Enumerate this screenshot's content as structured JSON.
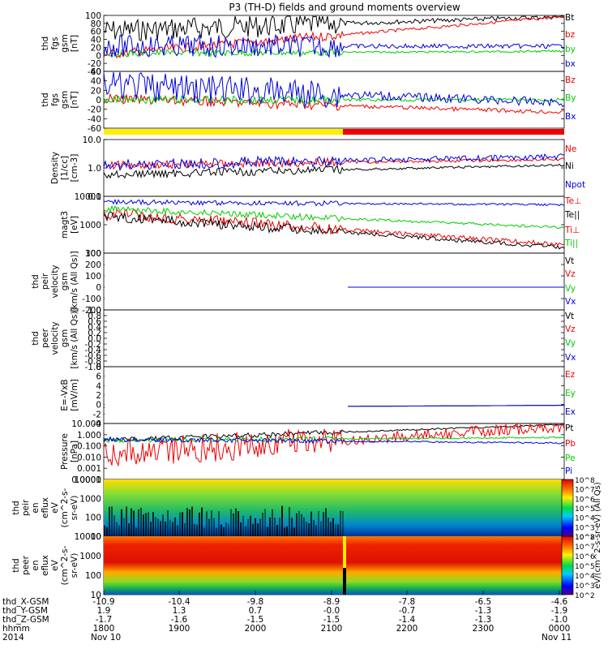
{
  "title": "P3 (TH-D) fields and ground moments overview",
  "time_ticks": [
    "1800",
    "1900",
    "2000",
    "2100",
    "2200",
    "2300",
    "0000"
  ],
  "dates": {
    "start": "Nov 10",
    "end": "Nov 11"
  },
  "ephemeris": {
    "labels": [
      "thd_X-GSM",
      "thd_Y-GSM",
      "thd_Z-GSM",
      "hhmm",
      "2014"
    ],
    "x_gsm": [
      "-10.9",
      "-10.4",
      "-9.8",
      "-8.9",
      "-7.8",
      "-6.5",
      "-4.6"
    ],
    "y_gsm": [
      "1.9",
      "1.3",
      "0.7",
      "-0.0",
      "-0.7",
      "-1.3",
      "-1.9"
    ],
    "z_gsm": [
      "-1.7",
      "-1.6",
      "-1.5",
      "-1.5",
      "-1.4",
      "-1.3",
      "-1.0"
    ]
  },
  "colorbar_label": "eV/(cm^2-s-sr-eV) (All Qs)",
  "colorbar_label_2": "eV/(cm^2-s-sr-eV)",
  "colorbar_ticks": [
    "10^8",
    "10^7",
    "10^6",
    "10^5",
    "10^4",
    "10^3",
    "10^2"
  ],
  "colors": {
    "black": "#000000",
    "red": "#ee0000",
    "green": "#00cc00",
    "blue": "#0000dd",
    "yellow": "#ffee00"
  },
  "chart_data": [
    {
      "type": "line",
      "ylabel": [
        "thd",
        "fgs",
        "gsm",
        "[nT]"
      ],
      "ylim": [
        -40,
        100
      ],
      "ticks": [
        "100",
        "80",
        "60",
        "40",
        "20",
        "0",
        "-20",
        "-40"
      ],
      "series": [
        {
          "name": "Bt",
          "color": "black"
        },
        {
          "name": "bz",
          "color": "red"
        },
        {
          "name": "by",
          "color": "green"
        },
        {
          "name": "bx",
          "color": "blue"
        }
      ]
    },
    {
      "type": "line",
      "ylabel": [
        "thd",
        "fgs",
        "gsm",
        "[nT]"
      ],
      "ylim": [
        -70,
        60
      ],
      "ticks": [
        "60",
        "40",
        "20",
        "0",
        "-20",
        "-40",
        "-60"
      ],
      "series": [
        {
          "name": "Bz",
          "color": "red"
        },
        {
          "name": "By",
          "color": "green"
        },
        {
          "name": "Bx",
          "color": "blue"
        }
      ]
    },
    {
      "type": "line",
      "ylabel": [
        "Density",
        "[1/cc]",
        "[cm-3]"
      ],
      "ylim": [
        0.1,
        10
      ],
      "log": true,
      "ticks": [
        "10.0",
        "1.0",
        "0.1"
      ],
      "series": [
        {
          "name": "Ne",
          "color": "red"
        },
        {
          "name": "Ni",
          "color": "black"
        },
        {
          "name": "Npot",
          "color": "blue"
        }
      ]
    },
    {
      "type": "line",
      "ylabel": [
        "magt3",
        "[eV]"
      ],
      "ylim": [
        100,
        10000
      ],
      "log": true,
      "ticks": [
        "10000",
        "1000",
        "100"
      ],
      "series": [
        {
          "name": "Te⊥",
          "color": "red"
        },
        {
          "name": "Te||",
          "color": "black"
        },
        {
          "name": "Ti⊥",
          "color": "red"
        },
        {
          "name": "Ti||",
          "color": "green"
        }
      ]
    },
    {
      "type": "line",
      "ylabel": [
        "thd",
        "peir",
        "velocity",
        "gsm",
        "[km/s (All Qs)]"
      ],
      "ylim": [
        -200,
        300
      ],
      "ticks": [
        "300",
        "200",
        "100",
        "0",
        "-100",
        "-200"
      ],
      "series": [
        {
          "name": "Vt",
          "color": "black"
        },
        {
          "name": "Vz",
          "color": "red"
        },
        {
          "name": "Vy",
          "color": "green"
        },
        {
          "name": "Vx",
          "color": "blue"
        }
      ]
    },
    {
      "type": "line",
      "ylabel": [
        "thd",
        "peer",
        "velocity",
        "gsm",
        "[km/s (All Qs)]"
      ],
      "ylim": [
        -1,
        1
      ],
      "ticks": [
        "1.0",
        "0.8",
        "0.6",
        "0.4",
        "0.2",
        "0.0",
        "-0.2",
        "-0.4",
        "-0.6",
        "-0.8",
        "-1.0"
      ],
      "series": [
        {
          "name": "Vt",
          "color": "black"
        },
        {
          "name": "Vz",
          "color": "red"
        },
        {
          "name": "Vy",
          "color": "green"
        },
        {
          "name": "Vx",
          "color": "blue"
        }
      ]
    },
    {
      "type": "line",
      "ylabel": [
        "E=-VxB",
        "[mV/m]"
      ],
      "ylim": [
        -4,
        8
      ],
      "ticks": [
        "8",
        "6",
        "4",
        "2",
        "0",
        "-2",
        "-4"
      ],
      "series": [
        {
          "name": "Ez",
          "color": "red"
        },
        {
          "name": "Ey",
          "color": "green"
        },
        {
          "name": "Ex",
          "color": "blue"
        }
      ]
    },
    {
      "type": "line",
      "ylabel": [
        "Pressure",
        "[nPa]"
      ],
      "ylim": [
        0.0001,
        10
      ],
      "log": true,
      "ticks": [
        "10.000",
        "1.000",
        "0.100",
        "0.010",
        "0.001",
        "0.0001"
      ],
      "series": [
        {
          "name": "Pt",
          "color": "black"
        },
        {
          "name": "Pb",
          "color": "red"
        },
        {
          "name": "Pe",
          "color": "green"
        },
        {
          "name": "Pi",
          "color": "blue"
        }
      ]
    },
    {
      "type": "heatmap",
      "ylabel": [
        "thd",
        "peir",
        "en",
        "eflux",
        "eV",
        "(cm^2-s-",
        "sr-eV)"
      ],
      "ticks": [
        "10000",
        "1000",
        "100",
        "10"
      ]
    },
    {
      "type": "heatmap",
      "ylabel": [
        "thd",
        "peer",
        "en",
        "eflux",
        "eV",
        "(cm^2-s-",
        "sr-eV)"
      ],
      "ticks": [
        "10000",
        "1000",
        "100",
        "10"
      ]
    }
  ]
}
